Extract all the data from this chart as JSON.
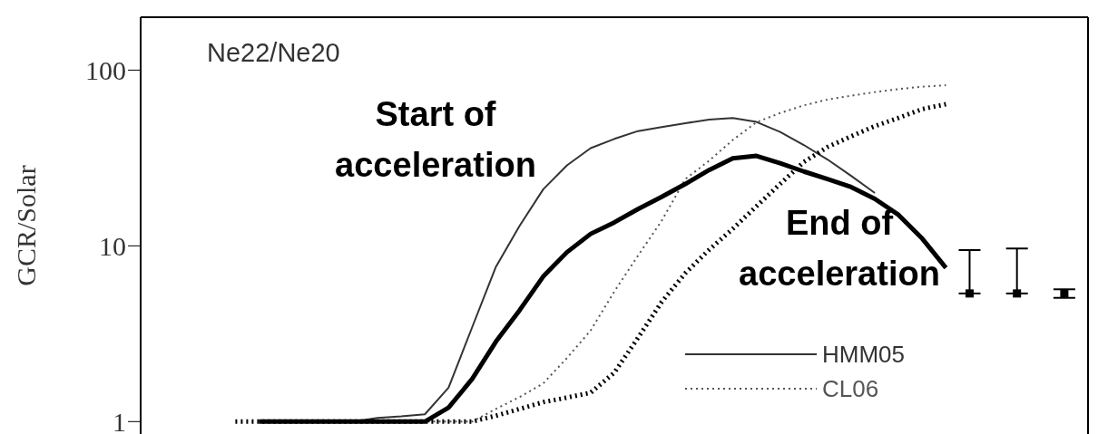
{
  "chart_data": {
    "type": "line",
    "ylabel": "GCR/Solar",
    "log": "y",
    "ylim": [
      0.85,
      200
    ],
    "yticks": [
      1,
      10,
      100
    ],
    "tick_labels": "y",
    "grid": false,
    "legend": "bottom right",
    "marker": "none",
    "annotations": [
      "Ne22/Ne20",
      "Start of acceleration",
      "End of acceleration"
    ],
    "categories": [
      null,
      null,
      null,
      null,
      null,
      null,
      null,
      null,
      null,
      null,
      null,
      null,
      null,
      null,
      null,
      null,
      null,
      null,
      null,
      null,
      null,
      null,
      null,
      null,
      null,
      null,
      null,
      null,
      null,
      null,
      null,
      null,
      null,
      null,
      null,
      null
    ],
    "series": [
      {
        "name": "HMM05",
        "color": "#333333",
        "line_style": "solid",
        "values": [
          null,
          1,
          1,
          1,
          1,
          1,
          1.05,
          1.07,
          1.1,
          1.56,
          3.45,
          7.6,
          13,
          21,
          28.7,
          36,
          40.6,
          45,
          47.4,
          49.9,
          52.3,
          53.4,
          50.7,
          44.5,
          37.5,
          31,
          25,
          20,
          null,
          null,
          null,
          null,
          null,
          null,
          null,
          null
        ]
      },
      {
        "name": "CL06",
        "color": "#555555",
        "line_style": "dotted",
        "values": [
          null,
          1,
          1,
          1,
          1,
          1,
          1,
          1,
          1,
          1,
          1,
          1.18,
          1.38,
          1.65,
          2.3,
          3.3,
          5.5,
          8.8,
          13.9,
          24,
          30.5,
          40,
          50.5,
          57,
          63,
          68,
          71.5,
          75,
          78,
          80.5,
          82,
          null,
          null,
          null,
          null,
          null
        ]
      },
      {
        "color": "#000000",
        "line_style": "solid",
        "values": [
          null,
          1,
          1,
          1,
          1,
          1,
          1,
          1,
          1,
          1.2,
          1.75,
          2.85,
          4.3,
          6.7,
          9.2,
          11.7,
          13.6,
          16.2,
          19,
          22.5,
          27,
          31.5,
          32.5,
          29.5,
          26.5,
          24,
          21.6,
          18.5,
          15,
          11,
          7.5,
          null,
          null,
          null,
          null,
          null
        ]
      },
      {
        "color": "#000000",
        "line_style": "dotted",
        "values": [
          1,
          1,
          1,
          1,
          1,
          1,
          1,
          1,
          1,
          1,
          1,
          1.08,
          1.18,
          1.29,
          1.37,
          1.46,
          1.9,
          3,
          4.8,
          7,
          9.5,
          12.5,
          16.8,
          22.5,
          30,
          36.5,
          42,
          48,
          53.5,
          60,
          64,
          null,
          null,
          null,
          null,
          null
        ]
      },
      {
        "type": "scatter",
        "marker": "square",
        "color": "#000000",
        "values": [
          null,
          null,
          null,
          null,
          null,
          null,
          null,
          null,
          null,
          null,
          null,
          null,
          null,
          null,
          null,
          null,
          null,
          null,
          null,
          null,
          null,
          null,
          null,
          null,
          null,
          null,
          null,
          null,
          null,
          null,
          null,
          5.36,
          null,
          5.36,
          null,
          5.36
        ],
        "errors": [
          null,
          null,
          null,
          null,
          null,
          null,
          null,
          null,
          null,
          null,
          null,
          null,
          null,
          null,
          null,
          null,
          null,
          null,
          null,
          null,
          null,
          null,
          null,
          null,
          null,
          null,
          null,
          null,
          null,
          null,
          null,
          [
            5.36,
            9.46
          ],
          null,
          [
            5.36,
            9.66
          ],
          null,
          0.3
        ]
      }
    ]
  }
}
